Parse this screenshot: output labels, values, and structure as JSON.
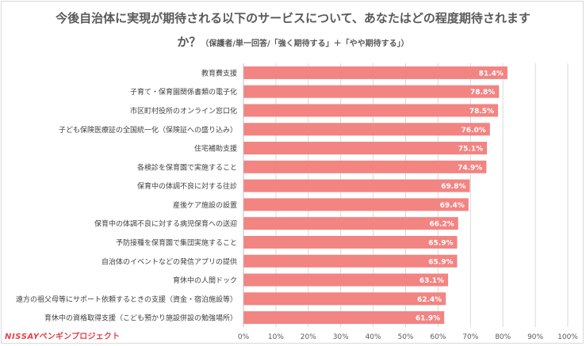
{
  "chart_data": {
    "type": "bar",
    "orientation": "horizontal",
    "title": "今後自治体に実現が期待される以下のサービスについて、あなたはどの程度期待されます",
    "title_line2": "か？",
    "subtitle": "（保護者/単一回答/「強く期待する」＋「やや期待する」）",
    "categories": [
      "教育費支援",
      "子育て・保育園関係書類の電子化",
      "市区町村役所のオンライン窓口化",
      "子ども保険医療証の全国統一化（保険証への盛り込み）",
      "住宅補助支援",
      "各検診を保育園で実施すること",
      "保育中の体調不良に対する往診",
      "産後ケア施設の設置",
      "保育中の体調不良に対する病児保育への送迎",
      "予防接種を保育園で集団実施すること",
      "自治体のイベントなどの発信アプリの提供",
      "育休中の人間ドック",
      "遠方の祖父母等にサポート依頼するときの支援（資金・宿泊施設等）",
      "育休中の資格取得支援（こども預かり施設併設の勉強場所）"
    ],
    "values": [
      81.4,
      78.8,
      78.5,
      76.0,
      75.1,
      74.9,
      69.8,
      69.4,
      66.2,
      65.9,
      65.9,
      63.1,
      62.4,
      61.9
    ],
    "value_labels": [
      "81.4%",
      "78.8%",
      "78.5%",
      "76.0%",
      "75.1%",
      "74.9%",
      "69.8%",
      "69.4%",
      "66.2%",
      "65.9%",
      "65.9%",
      "63.1%",
      "62.4%",
      "61.9%"
    ],
    "xlim": [
      0,
      100
    ],
    "xticks": [
      "0%",
      "10%",
      "20%",
      "30%",
      "40%",
      "50%",
      "60%",
      "70%",
      "80%",
      "90%",
      "100%"
    ],
    "grid": true,
    "bar_color": "#f28482",
    "label_color": "#ffffff"
  },
  "logo": {
    "brand": "NISSAY",
    "project": "ペンギンプロジェクト",
    "color": "#e8404a"
  }
}
